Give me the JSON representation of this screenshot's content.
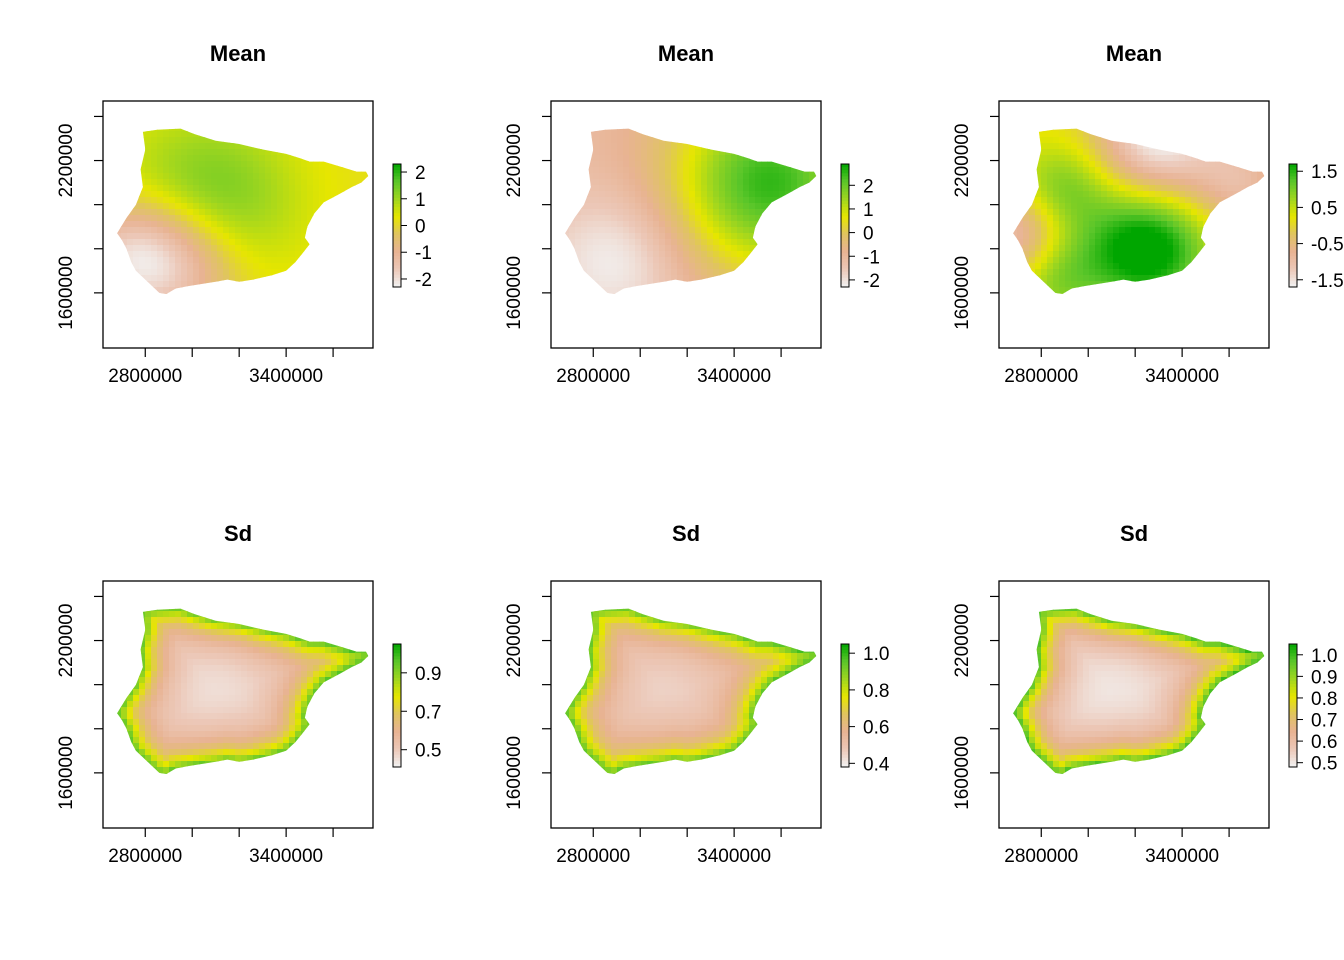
{
  "colors": {
    "scale": [
      "#f2f2f2",
      "#ecc8b8",
      "#e8b393",
      "#e0c460",
      "#e6e600",
      "#9fd61f",
      "#5bc62a",
      "#00a600"
    ],
    "background": "#ffffff",
    "frame": "#000000"
  },
  "chart_data": [
    {
      "type": "heatmap",
      "title": "Mean",
      "x_ticks": [
        "2800000",
        "3400000"
      ],
      "y_ticks": [
        "1600000",
        "2200000"
      ],
      "xlim": [
        2620000,
        3770000
      ],
      "ylim": [
        1350000,
        2470000
      ],
      "legend": {
        "placement": "right",
        "range": [
          -2.3,
          2.3
        ],
        "ticks": [
          2,
          1,
          0,
          -1,
          -2
        ],
        "labels": [
          "2",
          "1",
          "0",
          "-1",
          "-2"
        ]
      },
      "field": {
        "bias": 0.15,
        "blobs": [
          [
            3050000,
            2000000,
            1.6,
            260000
          ],
          [
            2900000,
            1750000,
            -2.4,
            210000
          ],
          [
            2700000,
            1780000,
            -1.0,
            160000
          ]
        ]
      }
    },
    {
      "type": "heatmap",
      "title": "Mean",
      "x_ticks": [
        "2800000",
        "3400000"
      ],
      "y_ticks": [
        "1600000",
        "2200000"
      ],
      "xlim": [
        2620000,
        3770000
      ],
      "ylim": [
        1350000,
        2470000
      ],
      "legend": {
        "placement": "right",
        "range": [
          -2.3,
          2.9
        ],
        "ticks": [
          2,
          1,
          0,
          -1,
          -2
        ],
        "labels": [
          "2",
          "1",
          "0",
          "-1",
          "-2"
        ]
      },
      "field": {
        "bias": -1.1,
        "blobs": [
          [
            3550000,
            2100000,
            3.6,
            300000
          ],
          [
            2900000,
            1750000,
            -1.2,
            220000
          ]
        ]
      }
    },
    {
      "type": "heatmap",
      "title": "Mean",
      "x_ticks": [
        "2800000",
        "3400000"
      ],
      "y_ticks": [
        "1600000",
        "2200000"
      ],
      "xlim": [
        2620000,
        3770000
      ],
      "ylim": [
        1350000,
        2470000
      ],
      "legend": {
        "placement": "right",
        "range": [
          -1.7,
          1.7
        ],
        "ticks": [
          1.5,
          0.5,
          -0.5,
          -1.5
        ],
        "labels": [
          "1.5",
          "0.5",
          "-0.5",
          "-1.5"
        ]
      },
      "field": {
        "bias": 0.1,
        "blobs": [
          [
            3250000,
            1800000,
            1.9,
            180000
          ],
          [
            2880000,
            2050000,
            1.1,
            150000
          ],
          [
            2850000,
            1700000,
            1.2,
            150000
          ],
          [
            3300000,
            2300000,
            -1.8,
            180000
          ],
          [
            2720000,
            1850000,
            -1.6,
            160000
          ],
          [
            3650000,
            2100000,
            -1.0,
            150000
          ]
        ]
      }
    },
    {
      "type": "heatmap",
      "title": "Sd",
      "x_ticks": [
        "2800000",
        "3400000"
      ],
      "y_ticks": [
        "1600000",
        "2200000"
      ],
      "xlim": [
        2620000,
        3770000
      ],
      "ylim": [
        1350000,
        2470000
      ],
      "legend": {
        "placement": "right",
        "range": [
          0.41,
          1.05
        ],
        "ticks": [
          0.9,
          0.7,
          0.5
        ],
        "labels": [
          "0.9",
          "0.7",
          "0.5"
        ]
      },
      "field": {
        "bias": 0.57,
        "blobs": [
          [
            3100000,
            2000000,
            -0.12,
            260000
          ]
        ]
      }
    },
    {
      "type": "heatmap",
      "title": "Sd",
      "x_ticks": [
        "2800000",
        "3400000"
      ],
      "y_ticks": [
        "1600000",
        "2200000"
      ],
      "xlim": [
        2620000,
        3770000
      ],
      "ylim": [
        1350000,
        2470000
      ],
      "legend": {
        "placement": "right",
        "range": [
          0.38,
          1.05
        ],
        "ticks": [
          1.0,
          0.8,
          0.6,
          0.4
        ],
        "labels": [
          "1.0",
          "0.8",
          "0.6",
          "0.4"
        ]
      },
      "field": {
        "bias": 0.57,
        "blobs": [
          [
            3100000,
            2000000,
            -0.12,
            260000
          ]
        ]
      }
    },
    {
      "type": "heatmap",
      "title": "Sd",
      "x_ticks": [
        "2800000",
        "3400000"
      ],
      "y_ticks": [
        "1600000",
        "2200000"
      ],
      "xlim": [
        2620000,
        3770000
      ],
      "ylim": [
        1350000,
        2470000
      ],
      "legend": {
        "placement": "right",
        "range": [
          0.48,
          1.05
        ],
        "ticks": [
          1.0,
          0.9,
          0.8,
          0.7,
          0.6,
          0.5
        ],
        "labels": [
          "1.0",
          "0.9",
          "0.8",
          "0.7",
          "0.6",
          "0.5"
        ]
      },
      "field": {
        "bias": 0.6,
        "blobs": [
          [
            3100000,
            2000000,
            -0.1,
            260000
          ]
        ]
      }
    }
  ]
}
